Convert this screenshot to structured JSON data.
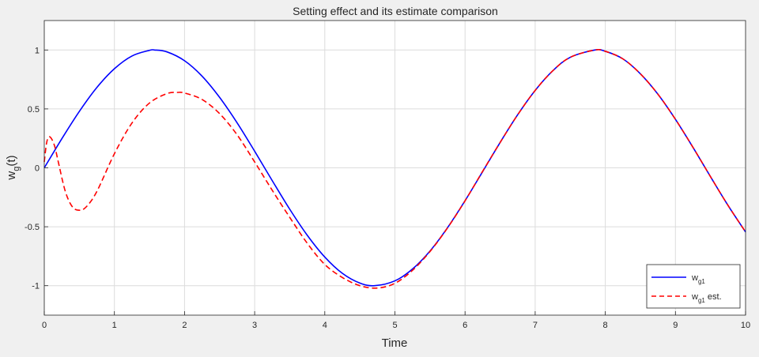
{
  "chart_data": {
    "type": "line",
    "title": "Setting effect and its estimate comparison",
    "xlabel": "Time",
    "ylabel_main": "w",
    "ylabel_sub": "g",
    "ylabel_tail": "(t)",
    "xlim": [
      0,
      10
    ],
    "ylim": [
      -1.25,
      1.25
    ],
    "grid": true,
    "xticks": [
      0,
      1,
      2,
      3,
      4,
      5,
      6,
      7,
      8,
      9,
      10
    ],
    "xtick_labels": [
      "0",
      "1",
      "2",
      "3",
      "4",
      "5",
      "6",
      "7",
      "8",
      "9",
      "10"
    ],
    "yticks": [
      1,
      0.5,
      0,
      -0.5,
      -1
    ],
    "ytick_labels": [
      "1",
      "0.5",
      "0",
      "-0.5",
      "-1"
    ],
    "legend_position": "bottom-right",
    "series": [
      {
        "legend_main": "w",
        "legend_sub": "g1",
        "legend_tail": "",
        "color": "#0000ff",
        "dash": "solid",
        "x": [
          0,
          0.25,
          0.5,
          0.75,
          1.0,
          1.25,
          1.5,
          1.57,
          1.75,
          2.0,
          2.25,
          2.5,
          2.75,
          3.0,
          3.25,
          3.5,
          3.75,
          4.0,
          4.25,
          4.5,
          4.71,
          5.0,
          5.25,
          5.5,
          5.75,
          6.0,
          6.25,
          6.5,
          6.75,
          7.0,
          7.25,
          7.5,
          7.85,
          8.0,
          8.25,
          8.5,
          8.75,
          9.0,
          9.25,
          9.5,
          9.75,
          10.0
        ],
        "y": [
          0,
          0.247,
          0.479,
          0.682,
          0.841,
          0.949,
          0.997,
          1.0,
          0.984,
          0.909,
          0.778,
          0.598,
          0.382,
          0.141,
          -0.108,
          -0.351,
          -0.572,
          -0.757,
          -0.895,
          -0.978,
          -1.0,
          -0.959,
          -0.859,
          -0.706,
          -0.508,
          -0.279,
          -0.033,
          0.215,
          0.45,
          0.657,
          0.823,
          0.938,
          1.0,
          0.989,
          0.925,
          0.798,
          0.625,
          0.412,
          0.174,
          -0.075,
          -0.319,
          -0.544
        ]
      },
      {
        "legend_main": "w",
        "legend_sub": "g1",
        "legend_tail": " est.",
        "color": "#ff0000",
        "dash": "dashed",
        "x": [
          0,
          0.03,
          0.06,
          0.1,
          0.15,
          0.2,
          0.3,
          0.4,
          0.5,
          0.6,
          0.75,
          1.0,
          1.25,
          1.5,
          1.75,
          1.9,
          2.0,
          2.25,
          2.5,
          2.75,
          3.0,
          3.25,
          3.5,
          3.75,
          4.0,
          4.25,
          4.5,
          4.75,
          5.0,
          5.25,
          5.5,
          5.75,
          6.0,
          6.25,
          6.5,
          6.75,
          7.0,
          7.25,
          7.5,
          7.85,
          8.0,
          8.25,
          8.5,
          8.75,
          9.0,
          9.25,
          9.5,
          9.75,
          10.0
        ],
        "y": [
          0.05,
          0.2,
          0.26,
          0.25,
          0.18,
          0.05,
          -0.2,
          -0.33,
          -0.36,
          -0.33,
          -0.2,
          0.12,
          0.38,
          0.55,
          0.63,
          0.64,
          0.635,
          0.58,
          0.46,
          0.28,
          0.05,
          -0.19,
          -0.42,
          -0.64,
          -0.82,
          -0.93,
          -1.0,
          -1.02,
          -0.98,
          -0.87,
          -0.71,
          -0.51,
          -0.28,
          -0.03,
          0.215,
          0.45,
          0.657,
          0.823,
          0.938,
          1.0,
          0.989,
          0.925,
          0.798,
          0.625,
          0.412,
          0.174,
          -0.075,
          -0.319,
          -0.544
        ]
      }
    ]
  }
}
